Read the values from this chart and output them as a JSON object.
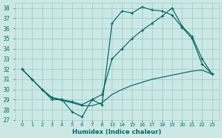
{
  "xlabel": "Humidex (Indice chaleur)",
  "bg_color": "#cce8e4",
  "grid_color": "#99cccc",
  "line_color": "#006666",
  "tick_labels": [
    "0",
    "1",
    "2",
    "3",
    "4",
    "5",
    "6",
    "7",
    "8",
    "13",
    "14",
    "15",
    "16",
    "17",
    "18",
    "19",
    "20",
    "21",
    "22",
    "23"
  ],
  "ylim": [
    27,
    38.5
  ],
  "series1_x": [
    0,
    1,
    2,
    3,
    4,
    5,
    6,
    7,
    8,
    9,
    10,
    11,
    12,
    13,
    14,
    15,
    16,
    17,
    18,
    19
  ],
  "series1_y": [
    32.0,
    31.0,
    30.0,
    29.0,
    29.0,
    27.8,
    27.3,
    29.0,
    28.5,
    36.5,
    37.7,
    37.5,
    38.1,
    37.8,
    37.7,
    37.3,
    36.1,
    35.0,
    32.5,
    31.5
  ],
  "series2_x": [
    0,
    1,
    2,
    3,
    4,
    5,
    6,
    7,
    8,
    9,
    10,
    11,
    12,
    13,
    14,
    15,
    16,
    17,
    18,
    19
  ],
  "series2_y": [
    32.0,
    31.0,
    30.0,
    29.2,
    29.0,
    28.8,
    28.5,
    29.0,
    29.5,
    33.0,
    34.0,
    35.0,
    35.8,
    36.5,
    37.2,
    38.0,
    36.2,
    35.2,
    33.0,
    31.5
  ],
  "series3_x": [
    0,
    1,
    2,
    3,
    4,
    5,
    6,
    7,
    8,
    9,
    10,
    11,
    12,
    13,
    14,
    15,
    16,
    17,
    18,
    19
  ],
  "series3_y": [
    32.0,
    31.0,
    30.0,
    29.2,
    28.9,
    28.7,
    28.4,
    28.4,
    28.7,
    29.5,
    30.0,
    30.4,
    30.7,
    31.0,
    31.2,
    31.4,
    31.6,
    31.8,
    31.9,
    31.5
  ]
}
